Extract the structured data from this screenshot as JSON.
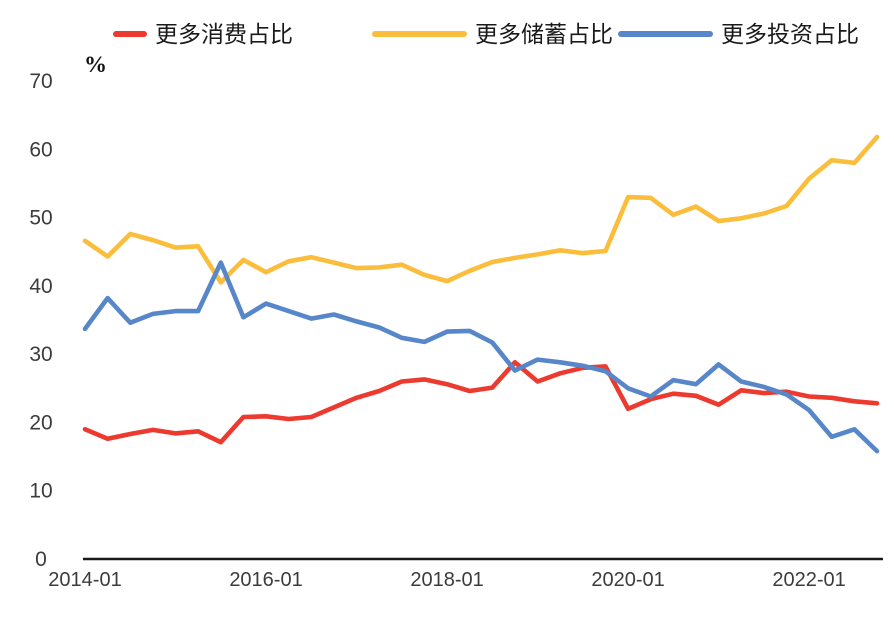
{
  "legend": {
    "position": "top",
    "items": [
      {
        "label": "更多消费占比",
        "color": "#EC3A2F"
      },
      {
        "label": "更多储蓄占比",
        "color": "#FBBE3C"
      },
      {
        "label": "更多投资占比",
        "color": "#5787C8"
      }
    ]
  },
  "y_axis": {
    "unit": "%",
    "ticks": [
      0,
      10,
      20,
      30,
      40,
      50,
      60,
      70
    ]
  },
  "x_axis": {
    "tick_labels": [
      "2014-01",
      "2016-01",
      "2018-01",
      "2020-01",
      "2022-01"
    ],
    "tick_indices": [
      0,
      8,
      16,
      24,
      32
    ]
  },
  "chart_data": {
    "type": "line",
    "title": "",
    "xlabel": "",
    "ylabel": "%",
    "ylim": [
      0,
      70
    ],
    "grid": false,
    "legend_position": "top",
    "categories": [
      "2014-01",
      "2014-04",
      "2014-07",
      "2014-10",
      "2015-01",
      "2015-04",
      "2015-07",
      "2015-10",
      "2016-01",
      "2016-04",
      "2016-07",
      "2016-10",
      "2017-01",
      "2017-04",
      "2017-07",
      "2017-10",
      "2018-01",
      "2018-04",
      "2018-07",
      "2018-10",
      "2019-01",
      "2019-04",
      "2019-07",
      "2019-10",
      "2020-01",
      "2020-04",
      "2020-07",
      "2020-10",
      "2021-01",
      "2021-04",
      "2021-07",
      "2021-10",
      "2022-01",
      "2022-04",
      "2022-07",
      "2022-10"
    ],
    "series": [
      {
        "name": "更多消费占比",
        "color": "#EC3A2F",
        "values": [
          19.0,
          17.6,
          18.3,
          18.9,
          18.4,
          18.7,
          17.1,
          20.8,
          20.9,
          20.5,
          20.8,
          22.2,
          23.6,
          24.6,
          26.0,
          26.3,
          25.6,
          24.6,
          25.1,
          28.8,
          26.0,
          27.2,
          28.0,
          28.2,
          22.0,
          23.4,
          24.2,
          23.9,
          22.6,
          24.7,
          24.3,
          24.5,
          23.8,
          23.6,
          23.1,
          22.8
        ]
      },
      {
        "name": "更多储蓄占比",
        "color": "#FBBE3C",
        "values": [
          46.6,
          44.3,
          47.6,
          46.7,
          45.6,
          45.8,
          40.5,
          43.8,
          42.0,
          43.6,
          44.2,
          43.4,
          42.6,
          42.7,
          43.1,
          41.6,
          40.7,
          42.2,
          43.5,
          44.1,
          44.6,
          45.2,
          44.8,
          45.1,
          53.0,
          52.9,
          50.4,
          51.6,
          49.5,
          49.9,
          50.6,
          51.7,
          55.7,
          58.4,
          58.0,
          61.8
        ]
      },
      {
        "name": "更多投资占比",
        "color": "#5787C8",
        "values": [
          33.7,
          38.2,
          34.6,
          35.9,
          36.3,
          36.3,
          43.4,
          35.4,
          37.4,
          36.3,
          35.2,
          35.8,
          34.8,
          33.9,
          32.4,
          31.8,
          33.3,
          33.4,
          31.7,
          27.6,
          29.2,
          28.8,
          28.3,
          27.5,
          25.0,
          23.8,
          26.2,
          25.6,
          28.5,
          26.0,
          25.2,
          24.1,
          21.8,
          17.9,
          19.0,
          15.8
        ]
      }
    ]
  },
  "style": {
    "axis_color": "#1a1a1a",
    "tick_label_color": "#3c3c3c",
    "background": "#ffffff"
  }
}
